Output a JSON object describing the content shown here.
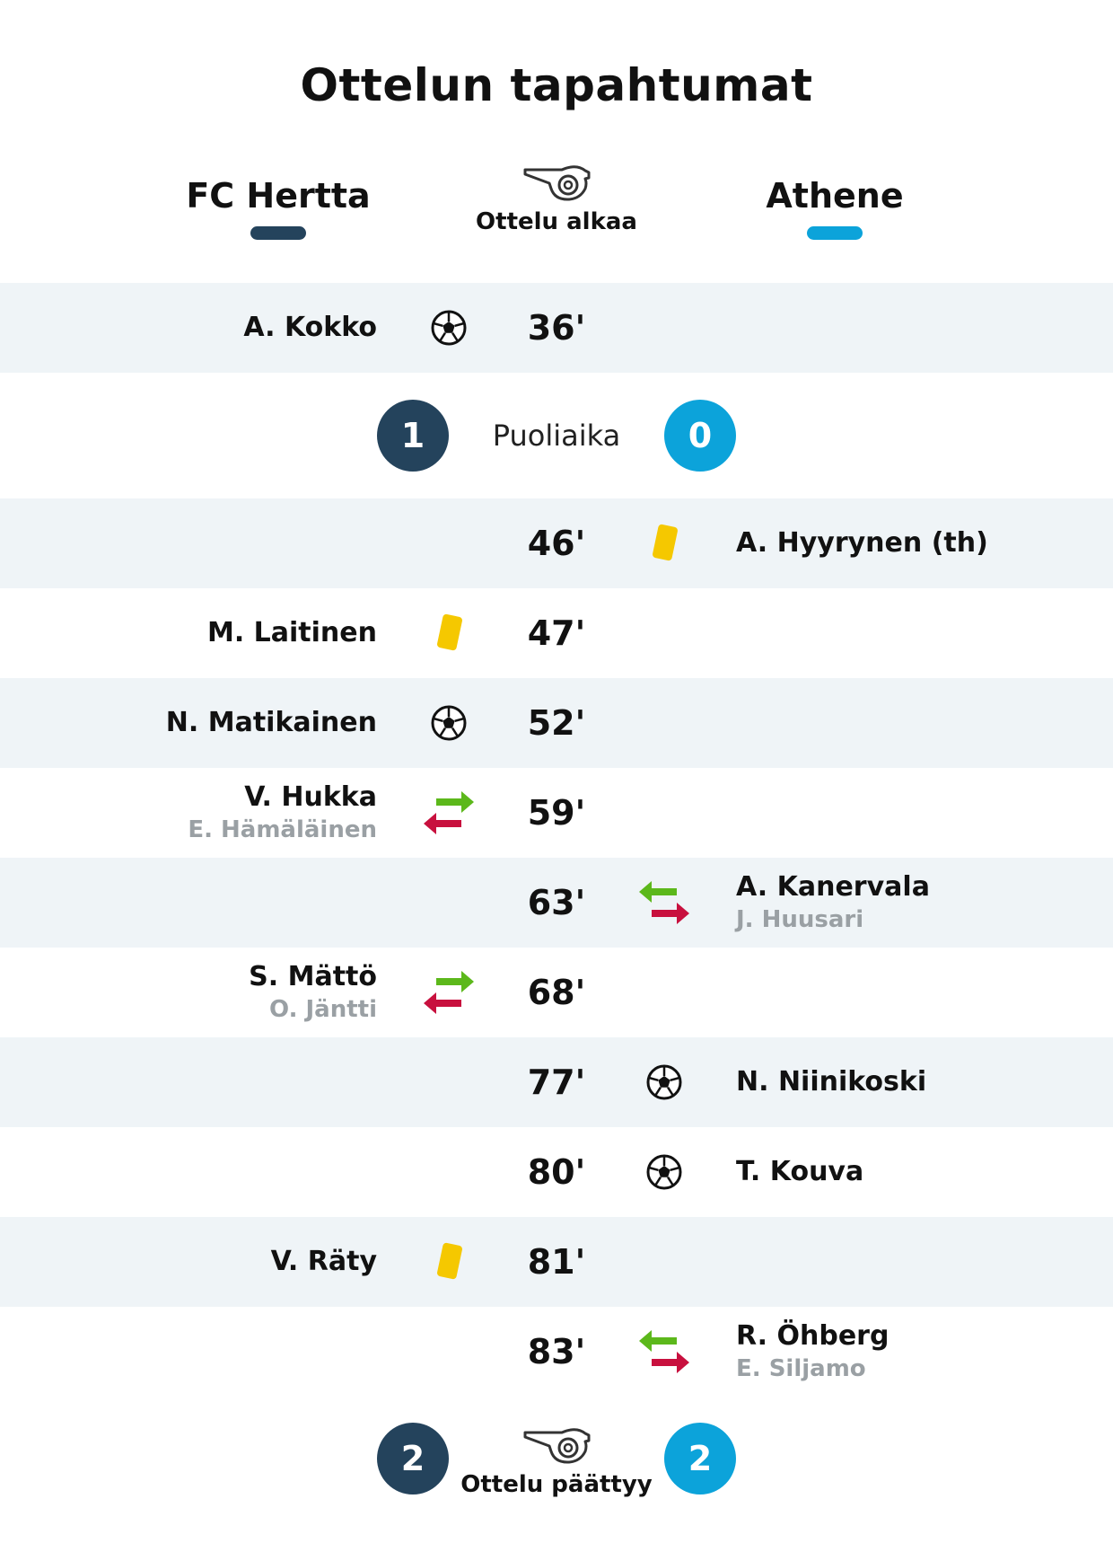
{
  "title": "Ottelun tapahtumat",
  "home": {
    "name": "FC Hertta",
    "color": "#24435c"
  },
  "away": {
    "name": "Athene",
    "color": "#0ca3da"
  },
  "start_label": "Ottelu alkaa",
  "end_label": "Ottelu päättyy",
  "halftime": {
    "label": "Puoliaika",
    "home_score": "1",
    "away_score": "0"
  },
  "final": {
    "home_score": "2",
    "away_score": "2"
  },
  "events_first_half": [
    {
      "minute": "36'",
      "side": "home",
      "type": "goal",
      "player": "A. Kokko"
    }
  ],
  "events_second_half": [
    {
      "minute": "46'",
      "side": "away",
      "type": "yellow-card",
      "player": "A. Hyyrynen (th)"
    },
    {
      "minute": "47'",
      "side": "home",
      "type": "yellow-card",
      "player": "M. Laitinen"
    },
    {
      "minute": "52'",
      "side": "home",
      "type": "goal",
      "player": "N. Matikainen"
    },
    {
      "minute": "59'",
      "side": "home",
      "type": "substitution",
      "player": "V. Hukka",
      "sub": "E. Hämäläinen"
    },
    {
      "minute": "63'",
      "side": "away",
      "type": "substitution",
      "player": "A. Kanervala",
      "sub": "J. Huusari"
    },
    {
      "minute": "68'",
      "side": "home",
      "type": "substitution",
      "player": "S. Mättö",
      "sub": "O. Jäntti"
    },
    {
      "minute": "77'",
      "side": "away",
      "type": "goal",
      "player": "N. Niinikoski"
    },
    {
      "minute": "80'",
      "side": "away",
      "type": "goal",
      "player": "T. Kouva"
    },
    {
      "minute": "81'",
      "side": "home",
      "type": "yellow-card",
      "player": "V. Räty"
    },
    {
      "minute": "83'",
      "side": "away",
      "type": "substitution",
      "player": "R. Öhberg",
      "sub": "E. Siljamo"
    }
  ]
}
